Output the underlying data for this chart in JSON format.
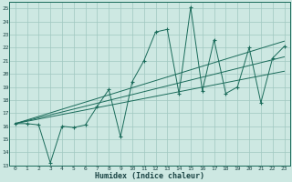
{
  "xlabel": "Humidex (Indice chaleur)",
  "bg_color": "#cde8e2",
  "grid_color": "#a0c8c0",
  "line_color": "#1a6b5a",
  "xlim": [
    -0.5,
    23.5
  ],
  "ylim": [
    13,
    25.5
  ],
  "xticks": [
    0,
    1,
    2,
    3,
    4,
    5,
    6,
    7,
    8,
    9,
    10,
    11,
    12,
    13,
    14,
    15,
    16,
    17,
    18,
    19,
    20,
    21,
    22,
    23
  ],
  "yticks": [
    13,
    14,
    15,
    16,
    17,
    18,
    19,
    20,
    21,
    22,
    23,
    24,
    25
  ],
  "scatter_x": [
    0,
    1,
    2,
    3,
    4,
    5,
    6,
    7,
    8,
    9,
    10,
    11,
    12,
    13,
    14,
    15,
    16,
    17,
    18,
    19,
    20,
    21,
    22,
    23
  ],
  "scatter_y": [
    16.2,
    16.2,
    16.1,
    13.2,
    16.0,
    15.9,
    16.1,
    17.5,
    18.8,
    15.2,
    19.4,
    21.0,
    23.2,
    23.4,
    18.5,
    25.1,
    18.7,
    22.6,
    18.5,
    19.0,
    22.0,
    17.8,
    21.2,
    22.1
  ],
  "line1_x": [
    0,
    23
  ],
  "line1_y": [
    16.2,
    22.5
  ],
  "line2_x": [
    0,
    23
  ],
  "line2_y": [
    16.2,
    21.3
  ],
  "line3_x": [
    0,
    23
  ],
  "line3_y": [
    16.2,
    20.2
  ],
  "tick_fontsize": 4.5,
  "xlabel_fontsize": 6.0
}
